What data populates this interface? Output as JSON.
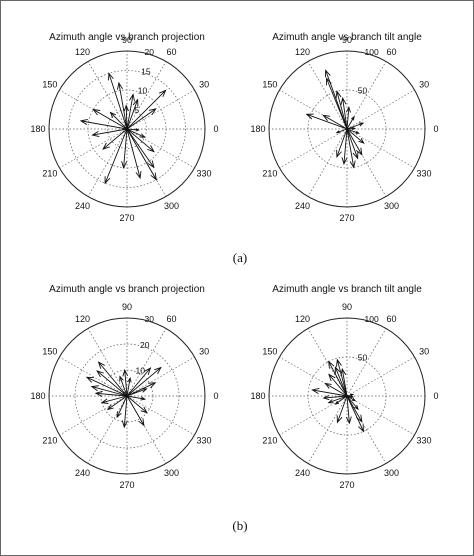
{
  "figure": {
    "caption_a": "(a)",
    "caption_b": "(b)"
  },
  "chart_data": [
    {
      "type": "polar-compass",
      "title": "Azimuth angle vs branch projection",
      "r_max": 20,
      "r_ticks": [
        5,
        10,
        15,
        20
      ],
      "r_tick_labels": [
        "5",
        "10",
        "15",
        "20"
      ],
      "angle_ticks": [
        0,
        30,
        60,
        90,
        120,
        150,
        180,
        210,
        240,
        270,
        300,
        330
      ],
      "angle_tick_labels": [
        "0",
        "30",
        "60",
        "90",
        "120",
        "150",
        "180",
        "210",
        "240",
        "270",
        "300",
        "330"
      ],
      "vectors": [
        {
          "angle": 108,
          "r": 15
        },
        {
          "angle": 100,
          "r": 12
        },
        {
          "angle": 92,
          "r": 6
        },
        {
          "angle": 80,
          "r": 9
        },
        {
          "angle": 70,
          "r": 8
        },
        {
          "angle": 45,
          "r": 14
        },
        {
          "angle": 35,
          "r": 9
        },
        {
          "angle": 150,
          "r": 10
        },
        {
          "angle": 135,
          "r": 6
        },
        {
          "angle": 170,
          "r": 12
        },
        {
          "angle": 190,
          "r": 9
        },
        {
          "angle": 220,
          "r": 8
        },
        {
          "angle": 248,
          "r": 15
        },
        {
          "angle": 265,
          "r": 10
        },
        {
          "angle": 285,
          "r": 13
        },
        {
          "angle": 300,
          "r": 15
        },
        {
          "angle": 305,
          "r": 12
        },
        {
          "angle": 320,
          "r": 9
        },
        {
          "angle": 335,
          "r": 5
        },
        {
          "angle": 355,
          "r": 3
        }
      ]
    },
    {
      "type": "polar-compass",
      "title": "Azimuth angle vs branch tilt angle",
      "r_max": 100,
      "r_ticks": [
        50,
        100
      ],
      "r_tick_labels": [
        "50",
        "100"
      ],
      "angle_ticks": [
        0,
        30,
        60,
        90,
        120,
        150,
        180,
        210,
        240,
        270,
        300,
        330
      ],
      "angle_tick_labels": [
        "0",
        "30",
        "60",
        "90",
        "120",
        "150",
        "180",
        "210",
        "240",
        "270",
        "300",
        "330"
      ],
      "vectors": [
        {
          "angle": 110,
          "r": 80
        },
        {
          "angle": 112,
          "r": 70
        },
        {
          "angle": 105,
          "r": 50
        },
        {
          "angle": 98,
          "r": 40
        },
        {
          "angle": 85,
          "r": 28
        },
        {
          "angle": 60,
          "r": 18
        },
        {
          "angle": 20,
          "r": 22
        },
        {
          "angle": 150,
          "r": 35
        },
        {
          "angle": 160,
          "r": 55
        },
        {
          "angle": 200,
          "r": 14
        },
        {
          "angle": 250,
          "r": 38
        },
        {
          "angle": 265,
          "r": 45
        },
        {
          "angle": 280,
          "r": 50
        },
        {
          "angle": 290,
          "r": 40
        },
        {
          "angle": 300,
          "r": 38
        },
        {
          "angle": 320,
          "r": 28
        },
        {
          "angle": 340,
          "r": 16
        },
        {
          "angle": 5,
          "r": 10
        }
      ]
    },
    {
      "type": "polar-compass",
      "title": "Azimuth angle vs branch projection",
      "r_max": 30,
      "r_ticks": [
        10,
        20,
        30
      ],
      "r_tick_labels": [
        "10",
        "20",
        "30"
      ],
      "angle_ticks": [
        0,
        30,
        60,
        90,
        120,
        150,
        180,
        210,
        240,
        270,
        300,
        330
      ],
      "angle_tick_labels": [
        "0",
        "30",
        "60",
        "90",
        "120",
        "150",
        "180",
        "210",
        "240",
        "270",
        "300",
        "330"
      ],
      "vectors": [
        {
          "angle": 130,
          "r": 17
        },
        {
          "angle": 140,
          "r": 15
        },
        {
          "angle": 155,
          "r": 17
        },
        {
          "angle": 165,
          "r": 14
        },
        {
          "angle": 175,
          "r": 12
        },
        {
          "angle": 195,
          "r": 10
        },
        {
          "angle": 215,
          "r": 9
        },
        {
          "angle": 110,
          "r": 8
        },
        {
          "angle": 95,
          "r": 10
        },
        {
          "angle": 80,
          "r": 7
        },
        {
          "angle": 50,
          "r": 14
        },
        {
          "angle": 40,
          "r": 17
        },
        {
          "angle": 25,
          "r": 12
        },
        {
          "angle": 20,
          "r": 8
        },
        {
          "angle": 350,
          "r": 7
        },
        {
          "angle": 320,
          "r": 10
        },
        {
          "angle": 300,
          "r": 13
        },
        {
          "angle": 265,
          "r": 12
        },
        {
          "angle": 245,
          "r": 9
        }
      ]
    },
    {
      "type": "polar-compass",
      "title": "Azimuth angle vs branch tilt angle",
      "r_max": 100,
      "r_ticks": [
        50,
        100
      ],
      "r_tick_labels": [
        "50",
        "100"
      ],
      "angle_ticks": [
        0,
        30,
        60,
        90,
        120,
        150,
        180,
        210,
        240,
        270,
        300,
        330
      ],
      "angle_tick_labels": [
        "0",
        "30",
        "60",
        "90",
        "120",
        "150",
        "180",
        "210",
        "240",
        "270",
        "300",
        "330"
      ],
      "vectors": [
        {
          "angle": 118,
          "r": 50
        },
        {
          "angle": 112,
          "r": 40
        },
        {
          "angle": 105,
          "r": 48
        },
        {
          "angle": 100,
          "r": 35
        },
        {
          "angle": 130,
          "r": 36
        },
        {
          "angle": 150,
          "r": 32
        },
        {
          "angle": 170,
          "r": 45
        },
        {
          "angle": 185,
          "r": 30
        },
        {
          "angle": 200,
          "r": 25
        },
        {
          "angle": 215,
          "r": 18
        },
        {
          "angle": 250,
          "r": 36
        },
        {
          "angle": 275,
          "r": 35
        },
        {
          "angle": 295,
          "r": 50
        },
        {
          "angle": 300,
          "r": 38
        },
        {
          "angle": 310,
          "r": 22
        },
        {
          "angle": 330,
          "r": 12
        },
        {
          "angle": 350,
          "r": 8
        },
        {
          "angle": 15,
          "r": 8
        }
      ]
    }
  ]
}
